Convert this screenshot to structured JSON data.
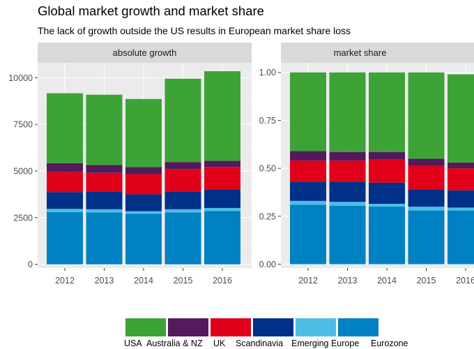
{
  "title": "Global market growth and market share",
  "subtitle": "The lack of growth outside the US results in European market share loss",
  "colors": {
    "panel_bg": "#ebebeb",
    "strip_bg": "#d9d9d9",
    "grid_major": "#ffffff",
    "grid_minor": "#f4f4f4"
  },
  "chart_data": {
    "type": "bar",
    "stacked": true,
    "categories": [
      "2012",
      "2013",
      "2014",
      "2015",
      "2016"
    ],
    "series": [
      {
        "name": "Eurozone",
        "color": "#0081c2"
      },
      {
        "name": "Emerging Europe",
        "color": "#4dbde6"
      },
      {
        "name": "Scandinavia",
        "color": "#003087"
      },
      {
        "name": "UK",
        "color": "#e0001a"
      },
      {
        "name": "Australia & NZ",
        "color": "#531a5c"
      },
      {
        "name": "USA",
        "color": "#3da337"
      }
    ],
    "legend_order": [
      "USA",
      "Australia & NZ",
      "UK",
      "Scandinavia",
      "Emerging Europe",
      "Eurozone"
    ],
    "legend_position": "bottom",
    "grid": true,
    "panels": [
      {
        "name": "absolute growth",
        "ylim": [
          -200,
          10800
        ],
        "yticks": [
          0,
          2500,
          5000,
          7500,
          10000
        ],
        "ytick_labels": [
          "0",
          "2500",
          "5000",
          "7500",
          "10000"
        ],
        "values": {
          "Eurozone": [
            2800,
            2780,
            2700,
            2780,
            2850
          ],
          "Emerging Europe": [
            170,
            170,
            150,
            170,
            170
          ],
          "Scandinavia": [
            900,
            930,
            900,
            930,
            1000
          ],
          "UK": [
            1080,
            1020,
            1080,
            1220,
            1200
          ],
          "Australia & NZ": [
            470,
            420,
            380,
            380,
            330
          ],
          "USA": [
            3750,
            3770,
            3650,
            4470,
            4800
          ]
        }
      },
      {
        "name": "market share",
        "ylim": [
          -0.02,
          1.05
        ],
        "yticks": [
          0,
          0.25,
          0.5,
          0.75,
          1.0
        ],
        "ytick_labels": [
          "0.00",
          "0.25",
          "0.50",
          "0.75",
          "1.00"
        ],
        "values": {
          "Eurozone": [
            0.31,
            0.305,
            0.3,
            0.28,
            0.28
          ],
          "Emerging Europe": [
            0.02,
            0.02,
            0.015,
            0.02,
            0.015
          ],
          "Scandinavia": [
            0.1,
            0.105,
            0.11,
            0.09,
            0.09
          ],
          "UK": [
            0.11,
            0.11,
            0.12,
            0.125,
            0.115
          ],
          "Australia & NZ": [
            0.05,
            0.045,
            0.04,
            0.035,
            0.03
          ],
          "USA": [
            0.41,
            0.415,
            0.415,
            0.45,
            0.46
          ]
        }
      }
    ]
  }
}
